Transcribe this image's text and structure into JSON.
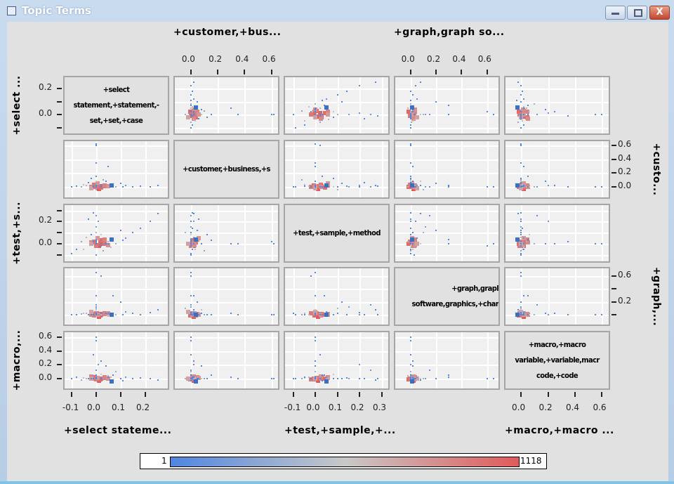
{
  "window": {
    "title": "Topic Terms",
    "close_label": "X"
  },
  "chart_data": {
    "type": "scatter",
    "subtype": "scatterplot-matrix",
    "grid": true,
    "variables": [
      {
        "short": "+select stateme...",
        "left_label": "+select ...",
        "diag": [
          "+select",
          "statement,+statement,-",
          "set,+set,+case"
        ],
        "range": [
          -0.134,
          0.297
        ],
        "yrange": [
          -0.156,
          0.297
        ],
        "xticks": [
          -0.1,
          0.0,
          0.1,
          0.2
        ],
        "xtick_labels": [
          "-0.1",
          "0.0",
          "0.1",
          "0.2"
        ],
        "yticks": [
          0.2,
          0.1,
          0.0,
          -0.1
        ],
        "ytick_labels": [
          "0.2",
          "",
          "0.0",
          ""
        ]
      },
      {
        "short": "+customer,+bus...",
        "right_label": "+custo...",
        "diag": [
          "+customer,+business,+s"
        ],
        "range": [
          -0.13,
          0.66
        ],
        "yrange": [
          -0.17,
          0.68
        ],
        "xticks": [
          0.0,
          0.2,
          0.4,
          0.6
        ],
        "xtick_labels": [
          "0.0",
          "0.2",
          "0.4",
          "0.6"
        ],
        "yticks": [
          0.6,
          0.4,
          0.2,
          0.0
        ],
        "ytick_labels": [
          "0.6",
          "0.4",
          "0.2",
          "0.0"
        ]
      },
      {
        "short": "+test,+sample,+...",
        "left_label": "+test,+s...",
        "diag": [
          "+test,+sample,+method"
        ],
        "range": [
          -0.144,
          0.335
        ],
        "yrange": [
          -0.17,
          0.36
        ],
        "xticks": [
          -0.1,
          0.0,
          0.1,
          0.2,
          0.3
        ],
        "xtick_labels": [
          "-0.1",
          "0.0",
          "0.1",
          "0.2",
          "0.3"
        ],
        "yticks": [
          0.3,
          0.2,
          0.1,
          0.0,
          -0.1
        ],
        "ytick_labels": [
          "",
          "0.2",
          "",
          "0.0",
          ""
        ]
      },
      {
        "short": "+graph,graph so...",
        "right_label": "+graph,...",
        "diag": [
          "+graph,grapl",
          "software,graphics,+char"
        ],
        "range": [
          -0.13,
          0.7
        ],
        "yrange": [
          -0.17,
          0.74
        ],
        "xticks": [
          0.0,
          0.2,
          0.4,
          0.6
        ],
        "xtick_labels": [
          "0.0",
          "0.2",
          "0.4",
          "0.6"
        ],
        "yticks": [
          0.6,
          0.4,
          0.2,
          0.0
        ],
        "ytick_labels": [
          "0.6",
          "",
          "0.2",
          ""
        ]
      },
      {
        "short": "+macro,+macro ...",
        "left_label": "+macro,...",
        "diag": [
          "+macro,+macro",
          "variable,+variable,macr",
          "code,+code"
        ],
        "range": [
          -0.125,
          0.66
        ],
        "yrange": [
          -0.16,
          0.69
        ],
        "xticks": [
          0.0,
          0.2,
          0.4,
          0.6
        ],
        "xtick_labels": [
          "0.0",
          "0.2",
          "0.4",
          "0.6"
        ],
        "yticks": [
          0.6,
          0.4,
          0.2,
          0.0
        ],
        "ytick_labels": [
          "0.6",
          "0.4",
          "0.2",
          "0.0"
        ]
      }
    ],
    "top_axes": [
      1,
      3
    ],
    "bottom_axes": [
      0,
      2,
      4
    ],
    "left_axes": [
      0,
      2,
      4
    ],
    "right_axes": [
      1,
      3
    ],
    "highlight_point": [
      0.06,
      0.03,
      0.045,
      0.01,
      -0.03
    ],
    "point_fields": [
      "select",
      "customer",
      "test",
      "graph",
      "macro",
      "density"
    ],
    "points": [
      [
        0.0,
        0.0,
        0.0,
        0.0,
        0.0,
        1118
      ],
      [
        0.01,
        0.01,
        0.01,
        0.01,
        0.0,
        900
      ],
      [
        -0.01,
        0.0,
        0.02,
        0.0,
        0.01,
        850
      ],
      [
        0.0,
        0.02,
        -0.01,
        0.02,
        0.0,
        800
      ],
      [
        0.02,
        0.0,
        0.0,
        -0.01,
        -0.01,
        700
      ],
      [
        -0.02,
        0.01,
        0.01,
        0.01,
        0.02,
        650
      ],
      [
        0.01,
        -0.01,
        0.03,
        0.0,
        0.0,
        600
      ],
      [
        0.03,
        0.01,
        0.0,
        0.02,
        0.01,
        500
      ],
      [
        -0.01,
        0.03,
        0.02,
        -0.01,
        0.0,
        450
      ],
      [
        0.0,
        0.0,
        -0.02,
        0.03,
        -0.01,
        400
      ],
      [
        0.02,
        0.02,
        0.04,
        0.01,
        0.02,
        300
      ],
      [
        -0.03,
        0.0,
        0.01,
        0.0,
        0.03,
        250
      ],
      [
        0.04,
        0.01,
        -0.01,
        0.02,
        0.0,
        200
      ],
      [
        0.0,
        0.05,
        0.05,
        0.0,
        0.01,
        150
      ],
      [
        -0.02,
        -0.02,
        0.0,
        0.05,
        0.0,
        120
      ],
      [
        0.05,
        0.0,
        0.02,
        -0.02,
        0.04,
        100
      ],
      [
        -0.04,
        0.02,
        0.06,
        0.03,
        0.0,
        80
      ],
      [
        0.06,
        0.01,
        -0.03,
        0.0,
        0.02,
        60
      ],
      [
        0.0,
        0.08,
        0.0,
        0.08,
        0.0,
        40
      ],
      [
        0.02,
        0.0,
        0.08,
        0.0,
        0.06,
        30
      ],
      [
        -0.05,
        0.03,
        -0.05,
        0.02,
        0.01,
        20
      ],
      [
        0.0,
        -0.04,
        0.1,
        0.1,
        0.0,
        10
      ],
      [
        0.08,
        0.0,
        0.0,
        0.0,
        0.1,
        8
      ],
      [
        -0.06,
        0.0,
        0.02,
        0.01,
        -0.02,
        6
      ],
      [
        0.03,
        0.1,
        -0.06,
        0.0,
        0.0,
        5
      ],
      [
        0.0,
        0.0,
        0.15,
        0.12,
        0.0,
        3
      ],
      [
        0.01,
        0.02,
        0.2,
        0.0,
        0.2,
        2
      ],
      [
        0.0,
        0.0,
        0.25,
        0.15,
        0.12,
        2
      ],
      [
        -0.01,
        0.01,
        0.28,
        0.0,
        0.0,
        1
      ],
      [
        0.12,
        0.02,
        0.05,
        0.05,
        0.02,
        2
      ],
      [
        0.15,
        0.0,
        0.1,
        0.02,
        0.0,
        1
      ],
      [
        0.18,
        0.01,
        0.14,
        0.0,
        0.01,
        1
      ],
      [
        0.22,
        0.0,
        0.2,
        0.04,
        0.0,
        1
      ],
      [
        0.25,
        0.02,
        0.27,
        0.08,
        -0.02,
        1
      ],
      [
        0.11,
        0.0,
        0.03,
        0.0,
        -0.03,
        1
      ],
      [
        -0.1,
        0.0,
        -0.09,
        0.0,
        0.0,
        1
      ],
      [
        -0.08,
        0.01,
        -0.05,
        0.0,
        0.02,
        1
      ],
      [
        0.0,
        0.6,
        0.02,
        0.0,
        0.0,
        1
      ],
      [
        0.05,
        0.3,
        0.0,
        0.02,
        0.02,
        1
      ],
      [
        0.0,
        0.15,
        0.03,
        0.0,
        0.05,
        1
      ],
      [
        0.0,
        0.0,
        0.0,
        0.65,
        0.0,
        1
      ],
      [
        0.02,
        0.0,
        -0.02,
        0.6,
        0.0,
        1
      ],
      [
        0.0,
        0.02,
        0.0,
        0.3,
        0.02,
        1
      ],
      [
        0.0,
        0.0,
        0.0,
        0.0,
        0.55,
        1
      ],
      [
        -0.01,
        0.0,
        0.02,
        0.0,
        0.35,
        1
      ],
      [
        0.02,
        0.02,
        0.0,
        0.02,
        0.25,
        1
      ],
      [
        0.0,
        0.35,
        0.0,
        0.0,
        0.0,
        1
      ],
      [
        0.1,
        0.05,
        0.12,
        0.2,
        0.0,
        1
      ],
      [
        0.0,
        0.62,
        0.0,
        0.0,
        0.0,
        1
      ],
      [
        0.0,
        0.0,
        0.0,
        0.0,
        0.6,
        1
      ],
      [
        -0.03,
        0.06,
        0.22,
        0.0,
        0.0,
        1
      ],
      [
        0.04,
        0.08,
        0.0,
        0.02,
        0.18,
        1
      ],
      [
        0.0,
        0.0,
        -0.1,
        0.03,
        0.0,
        1
      ],
      [
        0.07,
        0.0,
        0.04,
        0.3,
        0.05,
        1
      ],
      [
        -0.02,
        0.12,
        0.08,
        0.0,
        0.0,
        1
      ]
    ],
    "color_scale": {
      "min": 1,
      "max": 1118,
      "min_label": "1",
      "max_label": "1118",
      "colors": [
        "#4f86e0",
        "#c8c8c8",
        "#e05a5a"
      ]
    }
  }
}
